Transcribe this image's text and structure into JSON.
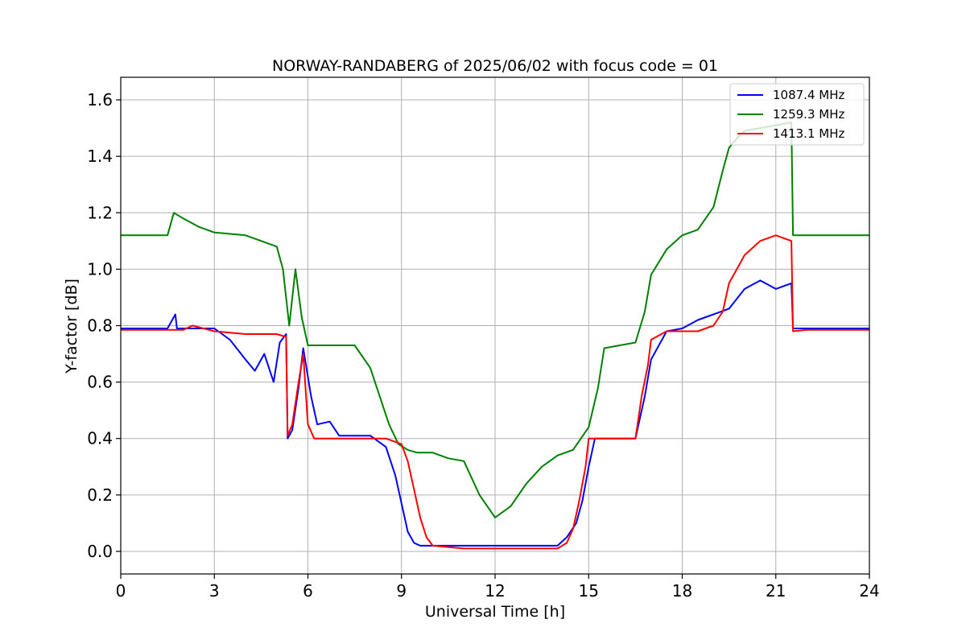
{
  "chart_data": {
    "type": "line",
    "title": "NORWAY-RANDABERG of 2025/06/02 with focus code = 01",
    "xlabel": "Universal Time [h]",
    "ylabel": "Y-factor [dB]",
    "xlim": [
      0,
      24
    ],
    "ylim": [
      -0.08,
      1.68
    ],
    "xticks": [
      0,
      3,
      6,
      9,
      12,
      15,
      18,
      21,
      24
    ],
    "yticks": [
      0.0,
      0.2,
      0.4,
      0.6,
      0.8,
      1.0,
      1.2,
      1.4,
      1.6
    ],
    "ytick_labels": [
      "0.0",
      "0.2",
      "0.4",
      "0.6",
      "0.8",
      "1.0",
      "1.2",
      "1.4",
      "1.6"
    ],
    "grid": true,
    "legend_position": "top-right",
    "series": [
      {
        "name": "1087.4 MHz",
        "color": "#0000ff",
        "x": [
          0,
          1.5,
          1.75,
          1.8,
          2.0,
          3.0,
          3.5,
          4.0,
          4.3,
          4.6,
          4.9,
          5.1,
          5.3,
          5.35,
          5.5,
          5.7,
          5.85,
          6.1,
          6.3,
          6.7,
          7.0,
          8.0,
          8.5,
          8.8,
          9.0,
          9.2,
          9.4,
          9.6,
          10.0,
          11.0,
          12.0,
          13.0,
          14.0,
          14.3,
          14.6,
          14.8,
          15.0,
          15.2,
          16.0,
          16.5,
          16.8,
          17.0,
          17.5,
          18.0,
          18.5,
          19.0,
          19.5,
          20.0,
          20.5,
          21.0,
          21.5,
          21.55,
          22.0,
          24.0
        ],
        "y": [
          0.79,
          0.79,
          0.84,
          0.79,
          0.79,
          0.79,
          0.75,
          0.68,
          0.64,
          0.7,
          0.6,
          0.74,
          0.77,
          0.4,
          0.43,
          0.58,
          0.72,
          0.55,
          0.45,
          0.46,
          0.41,
          0.41,
          0.37,
          0.27,
          0.17,
          0.07,
          0.03,
          0.02,
          0.02,
          0.02,
          0.02,
          0.02,
          0.02,
          0.05,
          0.1,
          0.18,
          0.3,
          0.4,
          0.4,
          0.4,
          0.55,
          0.68,
          0.78,
          0.79,
          0.82,
          0.84,
          0.86,
          0.93,
          0.96,
          0.93,
          0.95,
          0.79,
          0.79,
          0.79
        ]
      },
      {
        "name": "1259.3 MHz",
        "color": "#008000",
        "x": [
          0,
          1.5,
          1.7,
          2.0,
          2.5,
          3.0,
          4.0,
          4.5,
          5.0,
          5.2,
          5.4,
          5.6,
          5.8,
          6.0,
          6.5,
          7.0,
          7.5,
          8.0,
          8.3,
          8.6,
          8.9,
          9.2,
          9.5,
          10.0,
          10.5,
          11.0,
          11.5,
          12.0,
          12.5,
          13.0,
          13.5,
          14.0,
          14.5,
          15.0,
          15.3,
          15.5,
          16.0,
          16.5,
          16.8,
          17.0,
          17.5,
          18.0,
          18.5,
          19.0,
          19.3,
          19.5,
          19.8,
          20.0,
          21.0,
          21.5,
          21.55,
          22.0,
          24.0
        ],
        "y": [
          1.12,
          1.12,
          1.2,
          1.18,
          1.15,
          1.13,
          1.12,
          1.1,
          1.08,
          1.0,
          0.8,
          1.0,
          0.83,
          0.73,
          0.73,
          0.73,
          0.73,
          0.65,
          0.55,
          0.45,
          0.38,
          0.36,
          0.35,
          0.35,
          0.33,
          0.32,
          0.2,
          0.12,
          0.16,
          0.24,
          0.3,
          0.34,
          0.36,
          0.44,
          0.58,
          0.72,
          0.73,
          0.74,
          0.85,
          0.98,
          1.07,
          1.12,
          1.14,
          1.22,
          1.35,
          1.43,
          1.47,
          1.49,
          1.51,
          1.52,
          1.12,
          1.12,
          1.12
        ]
      },
      {
        "name": "1413.1 MHz",
        "color": "#ff0000",
        "x": [
          0,
          2.0,
          2.3,
          3.0,
          4.0,
          5.0,
          5.3,
          5.35,
          5.5,
          5.7,
          5.85,
          6.0,
          6.2,
          7.0,
          8.0,
          8.5,
          9.0,
          9.2,
          9.4,
          9.6,
          9.8,
          10.0,
          11.0,
          12.0,
          13.0,
          14.0,
          14.3,
          14.5,
          14.7,
          14.9,
          15.0,
          16.0,
          16.5,
          16.7,
          16.9,
          17.0,
          17.5,
          18.0,
          18.5,
          19.0,
          19.3,
          19.5,
          20.0,
          20.5,
          21.0,
          21.5,
          21.55,
          22.0,
          24.0
        ],
        "y": [
          0.785,
          0.785,
          0.8,
          0.78,
          0.77,
          0.77,
          0.76,
          0.41,
          0.45,
          0.6,
          0.7,
          0.45,
          0.4,
          0.4,
          0.4,
          0.4,
          0.38,
          0.32,
          0.22,
          0.12,
          0.05,
          0.02,
          0.01,
          0.01,
          0.01,
          0.01,
          0.03,
          0.08,
          0.18,
          0.3,
          0.4,
          0.4,
          0.4,
          0.55,
          0.66,
          0.75,
          0.78,
          0.78,
          0.78,
          0.8,
          0.85,
          0.95,
          1.05,
          1.1,
          1.12,
          1.1,
          0.78,
          0.785,
          0.785
        ]
      }
    ]
  }
}
